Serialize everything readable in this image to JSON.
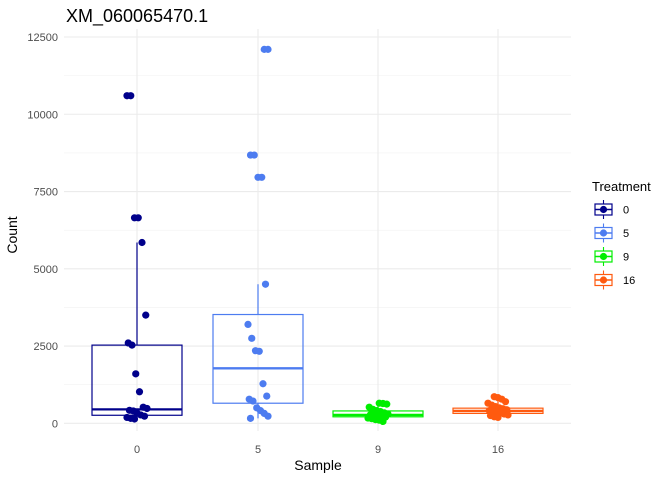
{
  "chart_data": {
    "type": "box",
    "title": "XM_060065470.1",
    "xlabel": "Sample",
    "ylabel": "Count",
    "ylim": [
      0,
      12600
    ],
    "yticks": [
      0,
      2500,
      5000,
      7500,
      10000,
      12500
    ],
    "categories": [
      "0",
      "5",
      "9",
      "16"
    ],
    "grid": true,
    "legend": {
      "title": "Treatment",
      "position": "right"
    },
    "series": [
      {
        "name": "0",
        "color": "#00008B",
        "box": {
          "q1": 260,
          "median": 450,
          "q3": 2530,
          "whisker_low": 140,
          "whisker_high": 5850
        },
        "points": [
          10600,
          10600,
          6650,
          6650,
          5850,
          3500,
          2600,
          2530,
          1600,
          1020,
          520,
          480,
          420,
          400,
          330,
          270,
          230,
          190,
          160,
          140
        ]
      },
      {
        "name": "5",
        "color": "#4D7CF0",
        "box": {
          "q1": 650,
          "median": 1780,
          "q3": 3520,
          "whisker_low": 160,
          "whisker_high": 4500
        },
        "points": [
          12100,
          12100,
          8680,
          8680,
          7960,
          7960,
          4500,
          3200,
          2750,
          2350,
          2330,
          1280,
          880,
          780,
          720,
          500,
          410,
          320,
          230,
          160
        ]
      },
      {
        "name": "9",
        "color": "#00EE00",
        "box": {
          "q1": 210,
          "median": 270,
          "q3": 400,
          "whisker_low": 60,
          "whisker_high": 650
        },
        "points": [
          650,
          640,
          620,
          520,
          450,
          410,
          380,
          340,
          300,
          280,
          260,
          240,
          220,
          200,
          170,
          150,
          120,
          100,
          60
        ]
      },
      {
        "name": "16",
        "color": "#FF5A0F",
        "box": {
          "q1": 320,
          "median": 400,
          "q3": 490,
          "whisker_low": 190,
          "whisker_high": 860
        },
        "points": [
          860,
          830,
          780,
          700,
          650,
          590,
          540,
          500,
          470,
          440,
          410,
          390,
          360,
          330,
          300,
          270,
          250,
          210,
          190
        ]
      }
    ]
  }
}
